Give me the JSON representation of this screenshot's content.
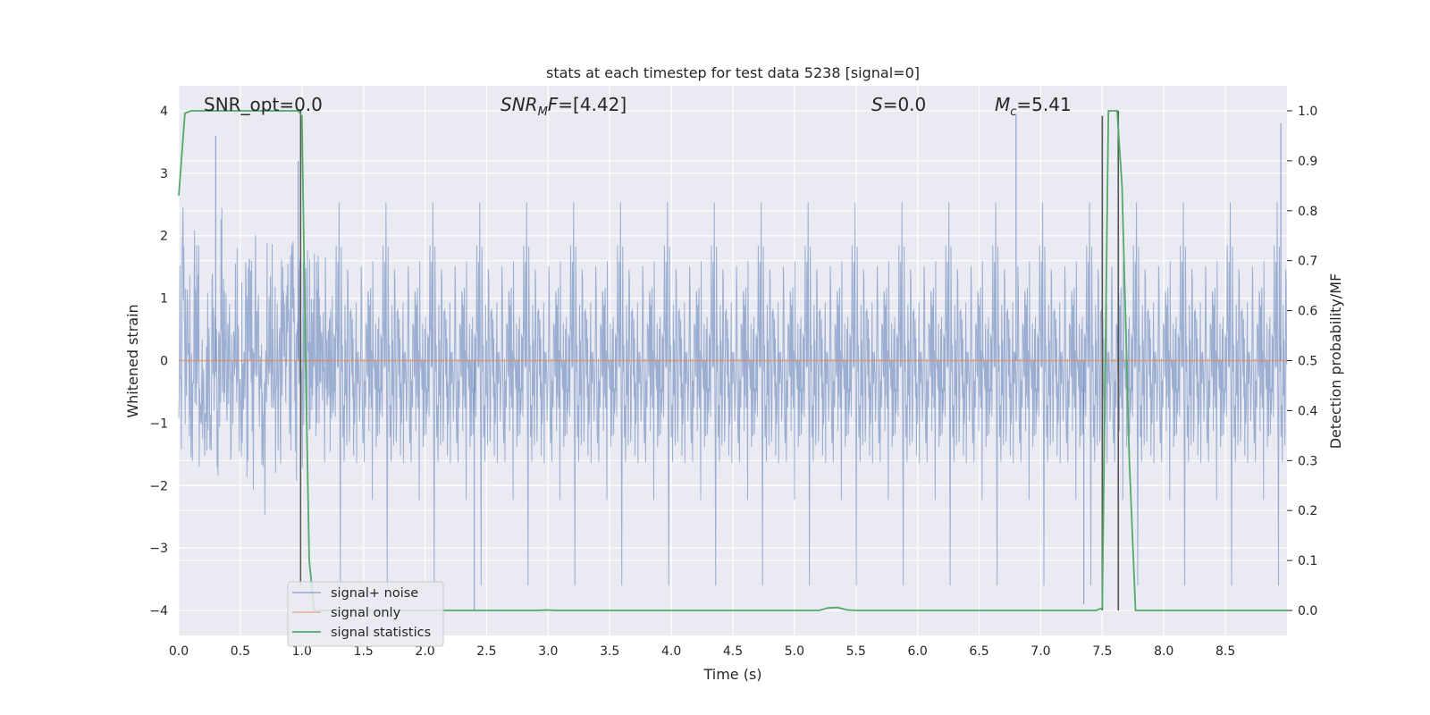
{
  "chart_data": {
    "type": "line",
    "title": "stats at each timestep for test data 5238 [signal=0]",
    "xlabel": "Time (s)",
    "ylabel": "Whitened strain",
    "ylabel_right": "Detection probability/MF",
    "xlim": [
      0,
      9
    ],
    "ylim": [
      -4.4,
      4.4
    ],
    "ylim_right": [
      -0.05,
      1.05
    ],
    "x_ticks": [
      "0.0",
      "0.5",
      "1.0",
      "1.5",
      "2.0",
      "2.5",
      "3.0",
      "3.5",
      "4.0",
      "4.5",
      "5.0",
      "5.5",
      "6.0",
      "6.5",
      "7.0",
      "7.5",
      "8.0",
      "8.5"
    ],
    "y_ticks": [
      "4",
      "3",
      "2",
      "1",
      "0",
      "−1",
      "−2",
      "−3",
      "−4"
    ],
    "y_ticks_right": [
      "1.0",
      "0.9",
      "0.8",
      "0.7",
      "0.6",
      "0.5",
      "0.4",
      "0.3",
      "0.2",
      "0.1",
      "0.0"
    ],
    "grid": true,
    "legend_position": "lower-left",
    "annotations": {
      "snr_opt": "SNR_opt=0.0",
      "snr_mf": "SNR_MF=[4.42]",
      "s": "S=0.0",
      "mc": "M_c=5.41"
    },
    "series": [
      {
        "name": "signal+ noise",
        "color": "#4c72b0",
        "description_stat": {
          "amplitude_std": 1.0,
          "typical_range": [
            -2.5,
            2.5
          ],
          "peaks": [
            [
              0.3,
              3.6
            ],
            [
              0.97,
              3.2
            ],
            [
              6.8,
              3.95
            ],
            [
              7.5,
              3.8
            ],
            [
              8.95,
              3.8
            ],
            [
              2.4,
              -4.0
            ],
            [
              7.35,
              -3.9
            ]
          ]
        }
      },
      {
        "name": "signal only",
        "color": "#dd8452",
        "x": [
          0,
          9
        ],
        "y": [
          0,
          0
        ]
      },
      {
        "name": "signal statistics",
        "color": "#55a868",
        "axis": "right",
        "x": [
          0.0,
          0.05,
          0.1,
          0.3,
          0.6,
          0.97,
          1.0,
          1.03,
          1.06,
          1.1,
          1.2,
          2.9,
          3.0,
          3.05,
          5.2,
          5.27,
          5.35,
          5.43,
          5.5,
          7.45,
          7.5,
          7.55,
          7.62,
          7.66,
          7.72,
          7.77,
          9.0
        ],
        "y": [
          0.83,
          0.995,
          1.0,
          1.0,
          1.0,
          1.0,
          0.99,
          0.5,
          0.1,
          0.0,
          0.0,
          0.0,
          0.001,
          0.0,
          0.0,
          0.005,
          0.006,
          0.001,
          0.0,
          0.0,
          0.005,
          1.0,
          1.0,
          0.85,
          0.3,
          0.0,
          0.0
        ]
      },
      {
        "name": "MF",
        "color": "#555555",
        "axis": "right",
        "vertical_lines": [
          {
            "x": 0.99,
            "y_from": 0.05,
            "y_to": 1.0
          },
          {
            "x": 7.5,
            "y_from": 0.0,
            "y_to": 0.99
          },
          {
            "x": 7.63,
            "y_from": 0.0,
            "y_to": 1.0
          }
        ]
      }
    ]
  }
}
